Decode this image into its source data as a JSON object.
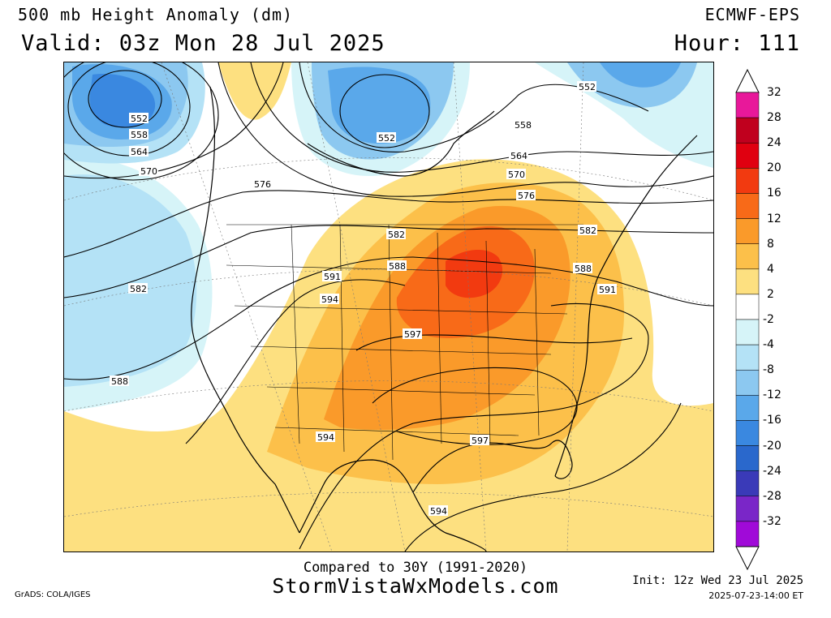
{
  "header": {
    "title": "500 mb Height Anomaly (dm)",
    "valid": "Valid: 03z Mon 28 Jul 2025",
    "model": "ECMWF-EPS",
    "hour": "Hour: 111"
  },
  "colorbar": {
    "levels": [
      {
        "label": "32",
        "color": "#e8189a"
      },
      {
        "label": "28",
        "color": "#c0001e"
      },
      {
        "label": "24",
        "color": "#e00010"
      },
      {
        "label": "20",
        "color": "#f23a10"
      },
      {
        "label": "16",
        "color": "#f86a18"
      },
      {
        "label": "12",
        "color": "#fa9a2a"
      },
      {
        "label": "8",
        "color": "#fcc04a"
      },
      {
        "label": "4",
        "color": "#fde080"
      },
      {
        "label": "2",
        "color": "#ffffff"
      },
      {
        "label": "-2",
        "color": "#d6f4f8"
      },
      {
        "label": "-4",
        "color": "#b4e2f6"
      },
      {
        "label": "-8",
        "color": "#8cc8f0"
      },
      {
        "label": "-12",
        "color": "#5aa8ea"
      },
      {
        "label": "-16",
        "color": "#3a88e0"
      },
      {
        "label": "-20",
        "color": "#2a68cc"
      },
      {
        "label": "-24",
        "color": "#3a3ab8"
      },
      {
        "label": "-28",
        "color": "#7a26c8"
      },
      {
        "label": "-32",
        "color": "#a00ad8"
      }
    ]
  },
  "contour_labels": [
    {
      "text": "552",
      "where": "gulf-of-alaska-low"
    },
    {
      "text": "558",
      "where": "gulf-of-alaska-low"
    },
    {
      "text": "564",
      "where": "gulf-of-alaska-low"
    },
    {
      "text": "570",
      "where": "gulf-of-alaska-low"
    },
    {
      "text": "552",
      "where": "hudson-bay-low"
    },
    {
      "text": "552",
      "where": "labrador-low"
    },
    {
      "text": "558",
      "where": "quebec"
    },
    {
      "text": "564",
      "where": "quebec"
    },
    {
      "text": "570",
      "where": "ontario"
    },
    {
      "text": "576",
      "where": "ontario"
    },
    {
      "text": "576",
      "where": "british-columbia"
    },
    {
      "text": "582",
      "where": "pacific"
    },
    {
      "text": "582",
      "where": "northern-plains"
    },
    {
      "text": "582",
      "where": "new-england"
    },
    {
      "text": "588",
      "where": "northern-plains"
    },
    {
      "text": "588",
      "where": "mid-atlantic"
    },
    {
      "text": "588",
      "where": "pacific"
    },
    {
      "text": "591",
      "where": "rockies"
    },
    {
      "text": "591",
      "where": "atlantic"
    },
    {
      "text": "594",
      "where": "great-basin"
    },
    {
      "text": "594",
      "where": "mexico"
    },
    {
      "text": "594",
      "where": "gulf-of-mexico"
    },
    {
      "text": "597",
      "where": "central-plains"
    },
    {
      "text": "597",
      "where": "gulf-coast"
    }
  ],
  "footer": {
    "compared": "Compared to 30Y (1991-2020)",
    "site": "StormVistaWxModels.com",
    "grads": "GrADS: COLA/IGES",
    "init": "Init: 12z Wed 23 Jul 2025",
    "stamp": "2025-07-23-14:00 ET"
  }
}
